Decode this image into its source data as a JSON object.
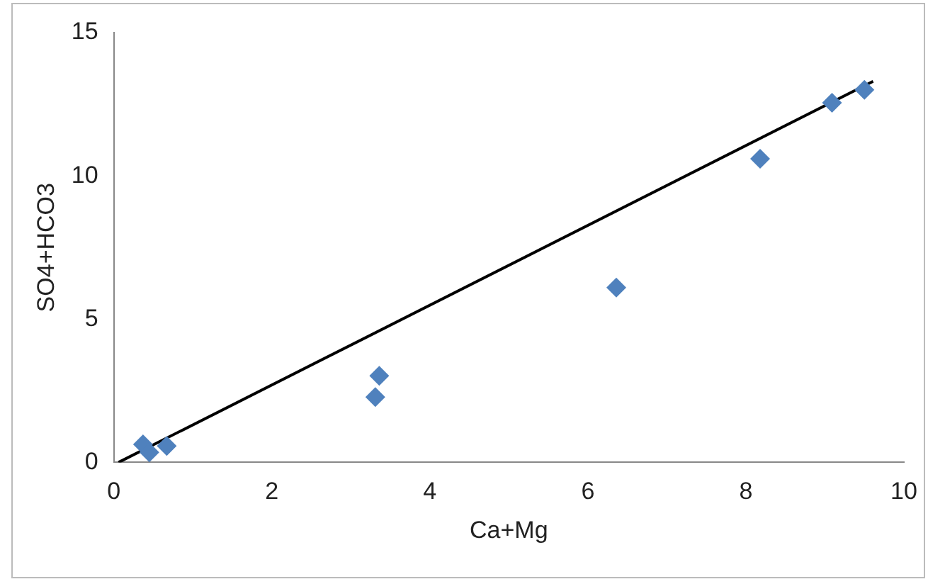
{
  "chart_data": {
    "type": "scatter",
    "xlabel": "Ca+Mg",
    "ylabel": "SO4+HCO3",
    "marker": "diamond",
    "grid": false,
    "legend": false,
    "xlim": [
      0,
      10
    ],
    "xticks": [
      0,
      2,
      4,
      6,
      8,
      10
    ],
    "ylim": [
      0,
      15
    ],
    "yticks": [
      0,
      5,
      10,
      15
    ],
    "series": [
      {
        "color": "#4f81bd",
        "x": [
          0.37,
          0.45,
          0.67,
          3.31,
          3.36,
          6.36,
          8.18,
          9.09,
          9.5
        ],
        "values": [
          0.63,
          0.35,
          0.57,
          2.28,
          3.02,
          6.1,
          10.6,
          12.55,
          13.0
        ]
      },
      {
        "type": "line",
        "marker": "none",
        "color": "#000000",
        "x": [
          0.06,
          9.61
        ],
        "values": [
          0,
          13.3
        ]
      }
    ]
  }
}
